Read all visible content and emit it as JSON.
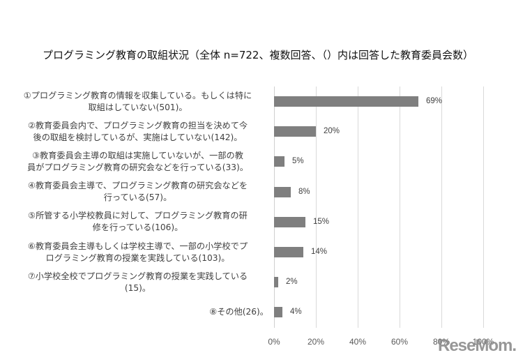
{
  "chart_data": {
    "type": "bar",
    "orientation": "horizontal",
    "title": "プログラミング教育の取組状況（全体 n=722、複数回答、（）内は回答した教育委員会数）",
    "categories": [
      "①プログラミング教育の情報を収集している。もしくは特に取組はしていない(501)。",
      "②教育委員会内で、プログラミング教育の担当を決めて今後の取組を検討しているが、実施はしていない(142)。",
      "③教育委員会主導の取組は実施していないが、一部の教員がプログラミング教育の研究会などを行っている(33)。",
      "④教育委員会主導で、プログラミング教育の研究会などを行っている(57)。",
      "⑤所管する小学校教員に対して、プログラミング教育の研修を行っている(106)。",
      "⑥教育委員会主導もしくは学校主導で、一部の小学校でプログラミング教育の授業を実践している(103)。",
      "⑦小学校全校でプログラミング教育の授業を実践している(15)。",
      "⑧その他(26)。"
    ],
    "values": [
      69,
      20,
      5,
      8,
      15,
      14,
      2,
      4
    ],
    "value_labels": [
      "69%",
      "20%",
      "5%",
      "8%",
      "15%",
      "14%",
      "2%",
      "4%"
    ],
    "xlabel": "",
    "ylabel": "",
    "xlim": [
      0,
      100
    ],
    "xticks": [
      "0%",
      "20%",
      "40%",
      "60%",
      "80%",
      "100%"
    ],
    "grid": true,
    "legend": null,
    "bar_color": "#7f7f7f"
  },
  "labels": [
    {
      "line1": "①プログラミング教育の情報を収集している。もしくは特に",
      "line2": "取組はしていない(501)。"
    },
    {
      "line1": "②教育委員会内で、プログラミング教育の担当を決めて今",
      "line2": "後の取組を検討しているが、実施はしていない(142)。"
    },
    {
      "line1": "③教育委員会主導の取組は実施していないが、一部の教",
      "line2": "員がプログラミング教育の研究会などを行っている(33)。"
    },
    {
      "line1": "④教育委員会主導で、プログラミング教育の研究会などを",
      "line2": "行っている(57)。"
    },
    {
      "line1": "⑤所管する小学校教員に対して、プログラミング教育の研",
      "line2": "修を行っている(106)。"
    },
    {
      "line1": "⑥教育委員会主導もしくは学校主導で、一部の小学校でプ",
      "line2": "ログラミング教育の授業を実践している(103)。"
    },
    {
      "line1": "⑦小学校全校でプログラミング教育の授業を実践している",
      "line2": "(15)。"
    },
    {
      "line1": "⑧その他(26)。",
      "line2": ""
    }
  ],
  "watermark": "ReseMom."
}
